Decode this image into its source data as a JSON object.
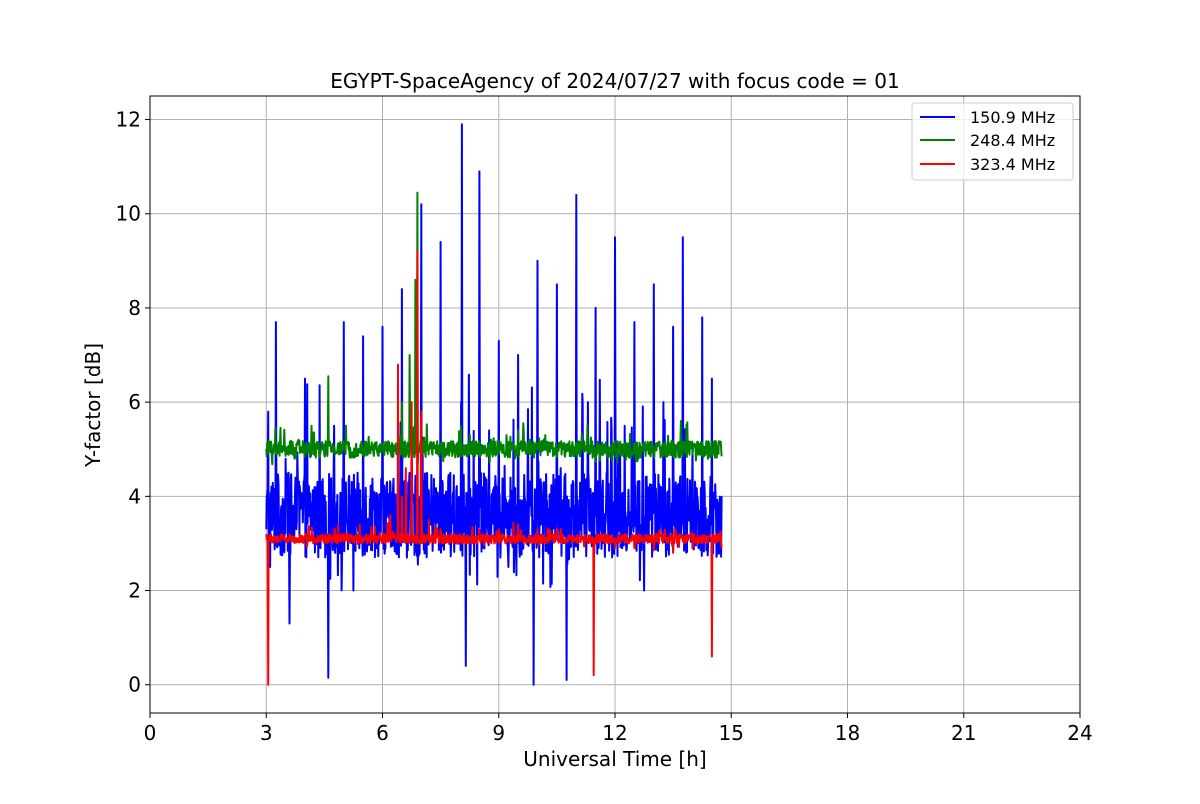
{
  "chart_data": {
    "type": "line",
    "title": "EGYPT-SpaceAgency of 2024/07/27 with focus code = 01",
    "xlabel": "Universal Time [h]",
    "ylabel": "Y-factor [dB]",
    "xlim": [
      0,
      24
    ],
    "ylim": [
      -0.6,
      12.5
    ],
    "xticks": [
      0,
      3,
      6,
      9,
      12,
      15,
      18,
      21,
      24
    ],
    "yticks": [
      0,
      2,
      4,
      6,
      8,
      10,
      12
    ],
    "grid": true,
    "legend_position": "top-right",
    "series": [
      {
        "name": "150.9 MHz",
        "color": "#0000ff",
        "baseline": 3.6,
        "noise": 0.9,
        "x": [
          3.0,
          3.05,
          3.1,
          3.25,
          3.5,
          3.6,
          4.0,
          4.6,
          4.75,
          5.0,
          5.25,
          5.5,
          5.75,
          6.0,
          6.25,
          6.5,
          6.75,
          7.0,
          7.25,
          7.5,
          7.75,
          8.05,
          8.15,
          8.5,
          8.75,
          9.0,
          9.25,
          9.5,
          9.9,
          10.0,
          10.3,
          10.5,
          10.75,
          11.0,
          11.3,
          11.5,
          11.75,
          12.0,
          12.25,
          12.5,
          12.75,
          13.0,
          13.25,
          13.5,
          13.75,
          14.0,
          14.25,
          14.5,
          14.75
        ],
        "y": [
          3.3,
          5.8,
          2.5,
          7.7,
          4.8,
          1.3,
          6.5,
          0.15,
          5.5,
          7.7,
          2.0,
          7.4,
          4.0,
          7.6,
          3.0,
          8.4,
          5.1,
          10.2,
          3.4,
          9.4,
          4.5,
          11.9,
          0.4,
          10.9,
          5.4,
          7.3,
          2.5,
          7.0,
          0.0,
          9.0,
          3.0,
          8.5,
          0.1,
          10.4,
          6.0,
          8.0,
          3.4,
          9.5,
          5.5,
          7.7,
          2.0,
          8.5,
          6.0,
          7.6,
          9.5,
          5.0,
          7.8,
          6.5,
          4.0
        ]
      },
      {
        "name": "248.4 MHz",
        "color": "#008000",
        "baseline": 5.0,
        "noise": 0.18,
        "x": [
          3.0,
          3.2,
          3.4,
          3.6,
          4.0,
          4.4,
          4.6,
          4.7,
          5.0,
          5.4,
          5.8,
          6.0,
          6.3,
          6.5,
          6.7,
          6.85,
          6.9,
          7.0,
          7.3,
          7.6,
          8.0,
          8.4,
          8.8,
          9.2,
          9.5,
          9.8,
          10.2,
          10.6,
          11.0,
          11.4,
          11.8,
          12.2,
          12.6,
          13.0,
          13.4,
          13.7,
          14.0,
          14.4,
          14.75
        ],
        "y": [
          5.0,
          5.1,
          4.95,
          5.0,
          5.0,
          4.95,
          6.55,
          4.95,
          5.0,
          4.95,
          5.0,
          5.1,
          5.0,
          6.0,
          7.0,
          8.6,
          10.45,
          5.5,
          5.1,
          5.0,
          5.1,
          5.0,
          5.2,
          5.3,
          5.4,
          5.2,
          5.3,
          5.1,
          5.0,
          4.95,
          4.9,
          4.9,
          4.8,
          5.0,
          5.1,
          5.6,
          4.9,
          4.8,
          4.85
        ]
      },
      {
        "name": "323.4 MHz",
        "color": "#ff0000",
        "baseline": 3.1,
        "noise": 0.1,
        "x": [
          3.0,
          3.05,
          3.1,
          3.2,
          3.5,
          4.0,
          4.5,
          5.0,
          5.5,
          6.0,
          6.2,
          6.4,
          6.5,
          6.6,
          6.75,
          6.9,
          7.0,
          7.2,
          7.5,
          8.0,
          8.5,
          9.0,
          9.5,
          10.0,
          10.5,
          11.0,
          11.45,
          11.5,
          12.0,
          12.5,
          13.0,
          13.5,
          14.0,
          14.5,
          14.75
        ],
        "y": [
          3.2,
          0.0,
          3.1,
          3.15,
          3.1,
          3.1,
          3.0,
          3.05,
          3.1,
          3.2,
          3.6,
          6.8,
          4.0,
          4.6,
          6.0,
          9.2,
          5.8,
          3.5,
          3.3,
          3.2,
          3.3,
          3.3,
          3.4,
          3.3,
          3.3,
          3.1,
          0.2,
          3.0,
          2.9,
          2.9,
          2.85,
          2.8,
          2.9,
          0.6,
          2.9
        ]
      }
    ]
  }
}
